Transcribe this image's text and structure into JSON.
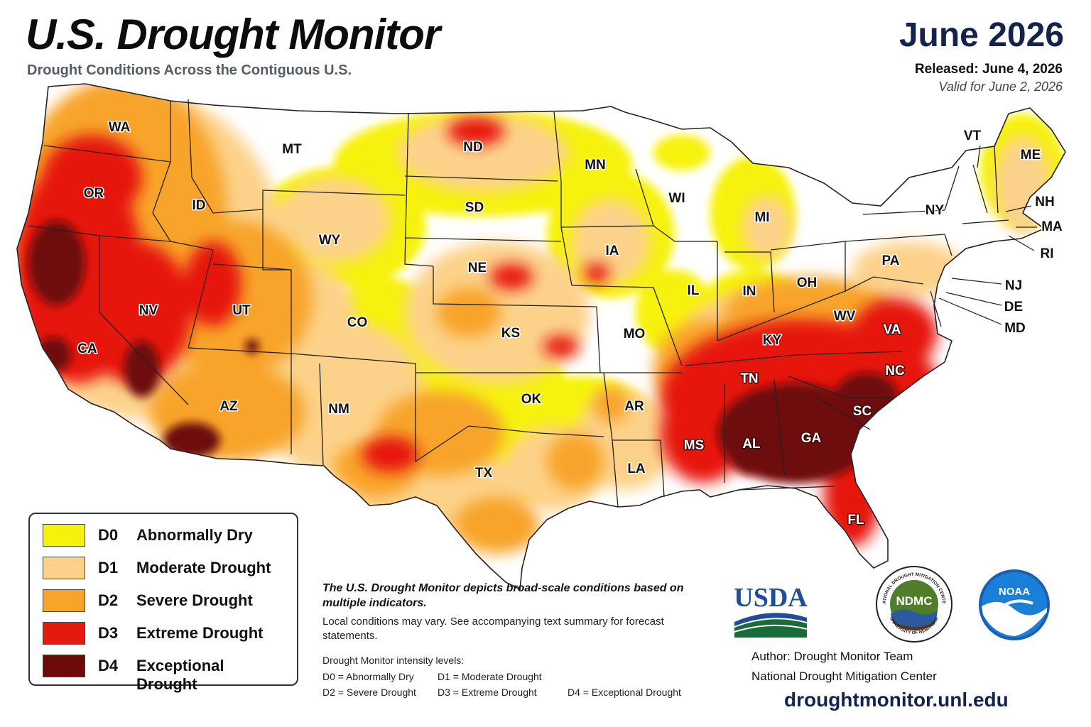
{
  "header": {
    "title": "U.S. Drought Monitor",
    "subtitle": "Drought Conditions Across the Contiguous U.S.",
    "date": "June 2026",
    "released": "Released: June 4, 2026",
    "valid": "Valid for June 2, 2026"
  },
  "colors": {
    "D0": "#f7f20c",
    "D1": "#fcd28a",
    "D2": "#f8a42a",
    "D3": "#e6190f",
    "D4": "#6e0a0a",
    "none": "#ffffff",
    "accent": "#14234d"
  },
  "legend": [
    {
      "code": "D0",
      "label": "Abnormally Dry"
    },
    {
      "code": "D1",
      "label": "Moderate Drought"
    },
    {
      "code": "D2",
      "label": "Severe Drought"
    },
    {
      "code": "D3",
      "label": "Extreme Drought"
    },
    {
      "code": "D4",
      "label": "Exceptional Drought"
    }
  ],
  "states": [
    "WA",
    "OR",
    "CA",
    "ID",
    "NV",
    "MT",
    "WY",
    "UT",
    "AZ",
    "CO",
    "NM",
    "ND",
    "SD",
    "NE",
    "KS",
    "OK",
    "TX",
    "MN",
    "IA",
    "MO",
    "AR",
    "LA",
    "WI",
    "IL",
    "MI",
    "IN",
    "OH",
    "KY",
    "TN",
    "MS",
    "AL",
    "GA",
    "FL",
    "SC",
    "NC",
    "VA",
    "WV",
    "PA",
    "NY",
    "VT",
    "NH",
    "ME",
    "MA",
    "RI",
    "NJ",
    "DE",
    "MD"
  ],
  "notes": {
    "main": "The U.S. Drought Monitor depicts broad-scale conditions based on multiple indicators.",
    "sub": "Local conditions may vary. See accompanying text summary for forecast statements.",
    "levels_header": "Drought Monitor intensity levels:",
    "levels": [
      "D0 = Abnormally Dry",
      "D1 = Moderate Drought",
      "D2 = Severe Drought",
      "D3 = Extreme Drought",
      "D4 = Exceptional Drought"
    ]
  },
  "logos": {
    "usda": "USDA",
    "ndmc": "NDMC",
    "ndmc_ring_top": "NATIONAL DROUGHT MITIGATION CENTER",
    "ndmc_ring_bottom": "UNIVERSITY OF NEBRASKA",
    "noaa": "NOAA"
  },
  "footer": {
    "author": "Author:  Drought Monitor Team",
    "org": "National Drought Mitigation Center",
    "url": "droughtmonitor.unl.edu"
  }
}
